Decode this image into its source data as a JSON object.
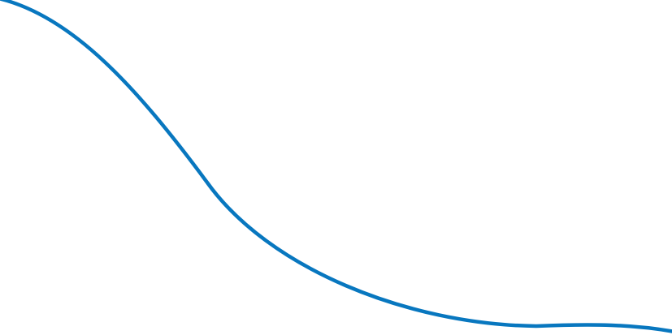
{
  "background_color": "#ffffff",
  "curve": {
    "color": "#0877bf",
    "shape": "descending-s-curve"
  }
}
